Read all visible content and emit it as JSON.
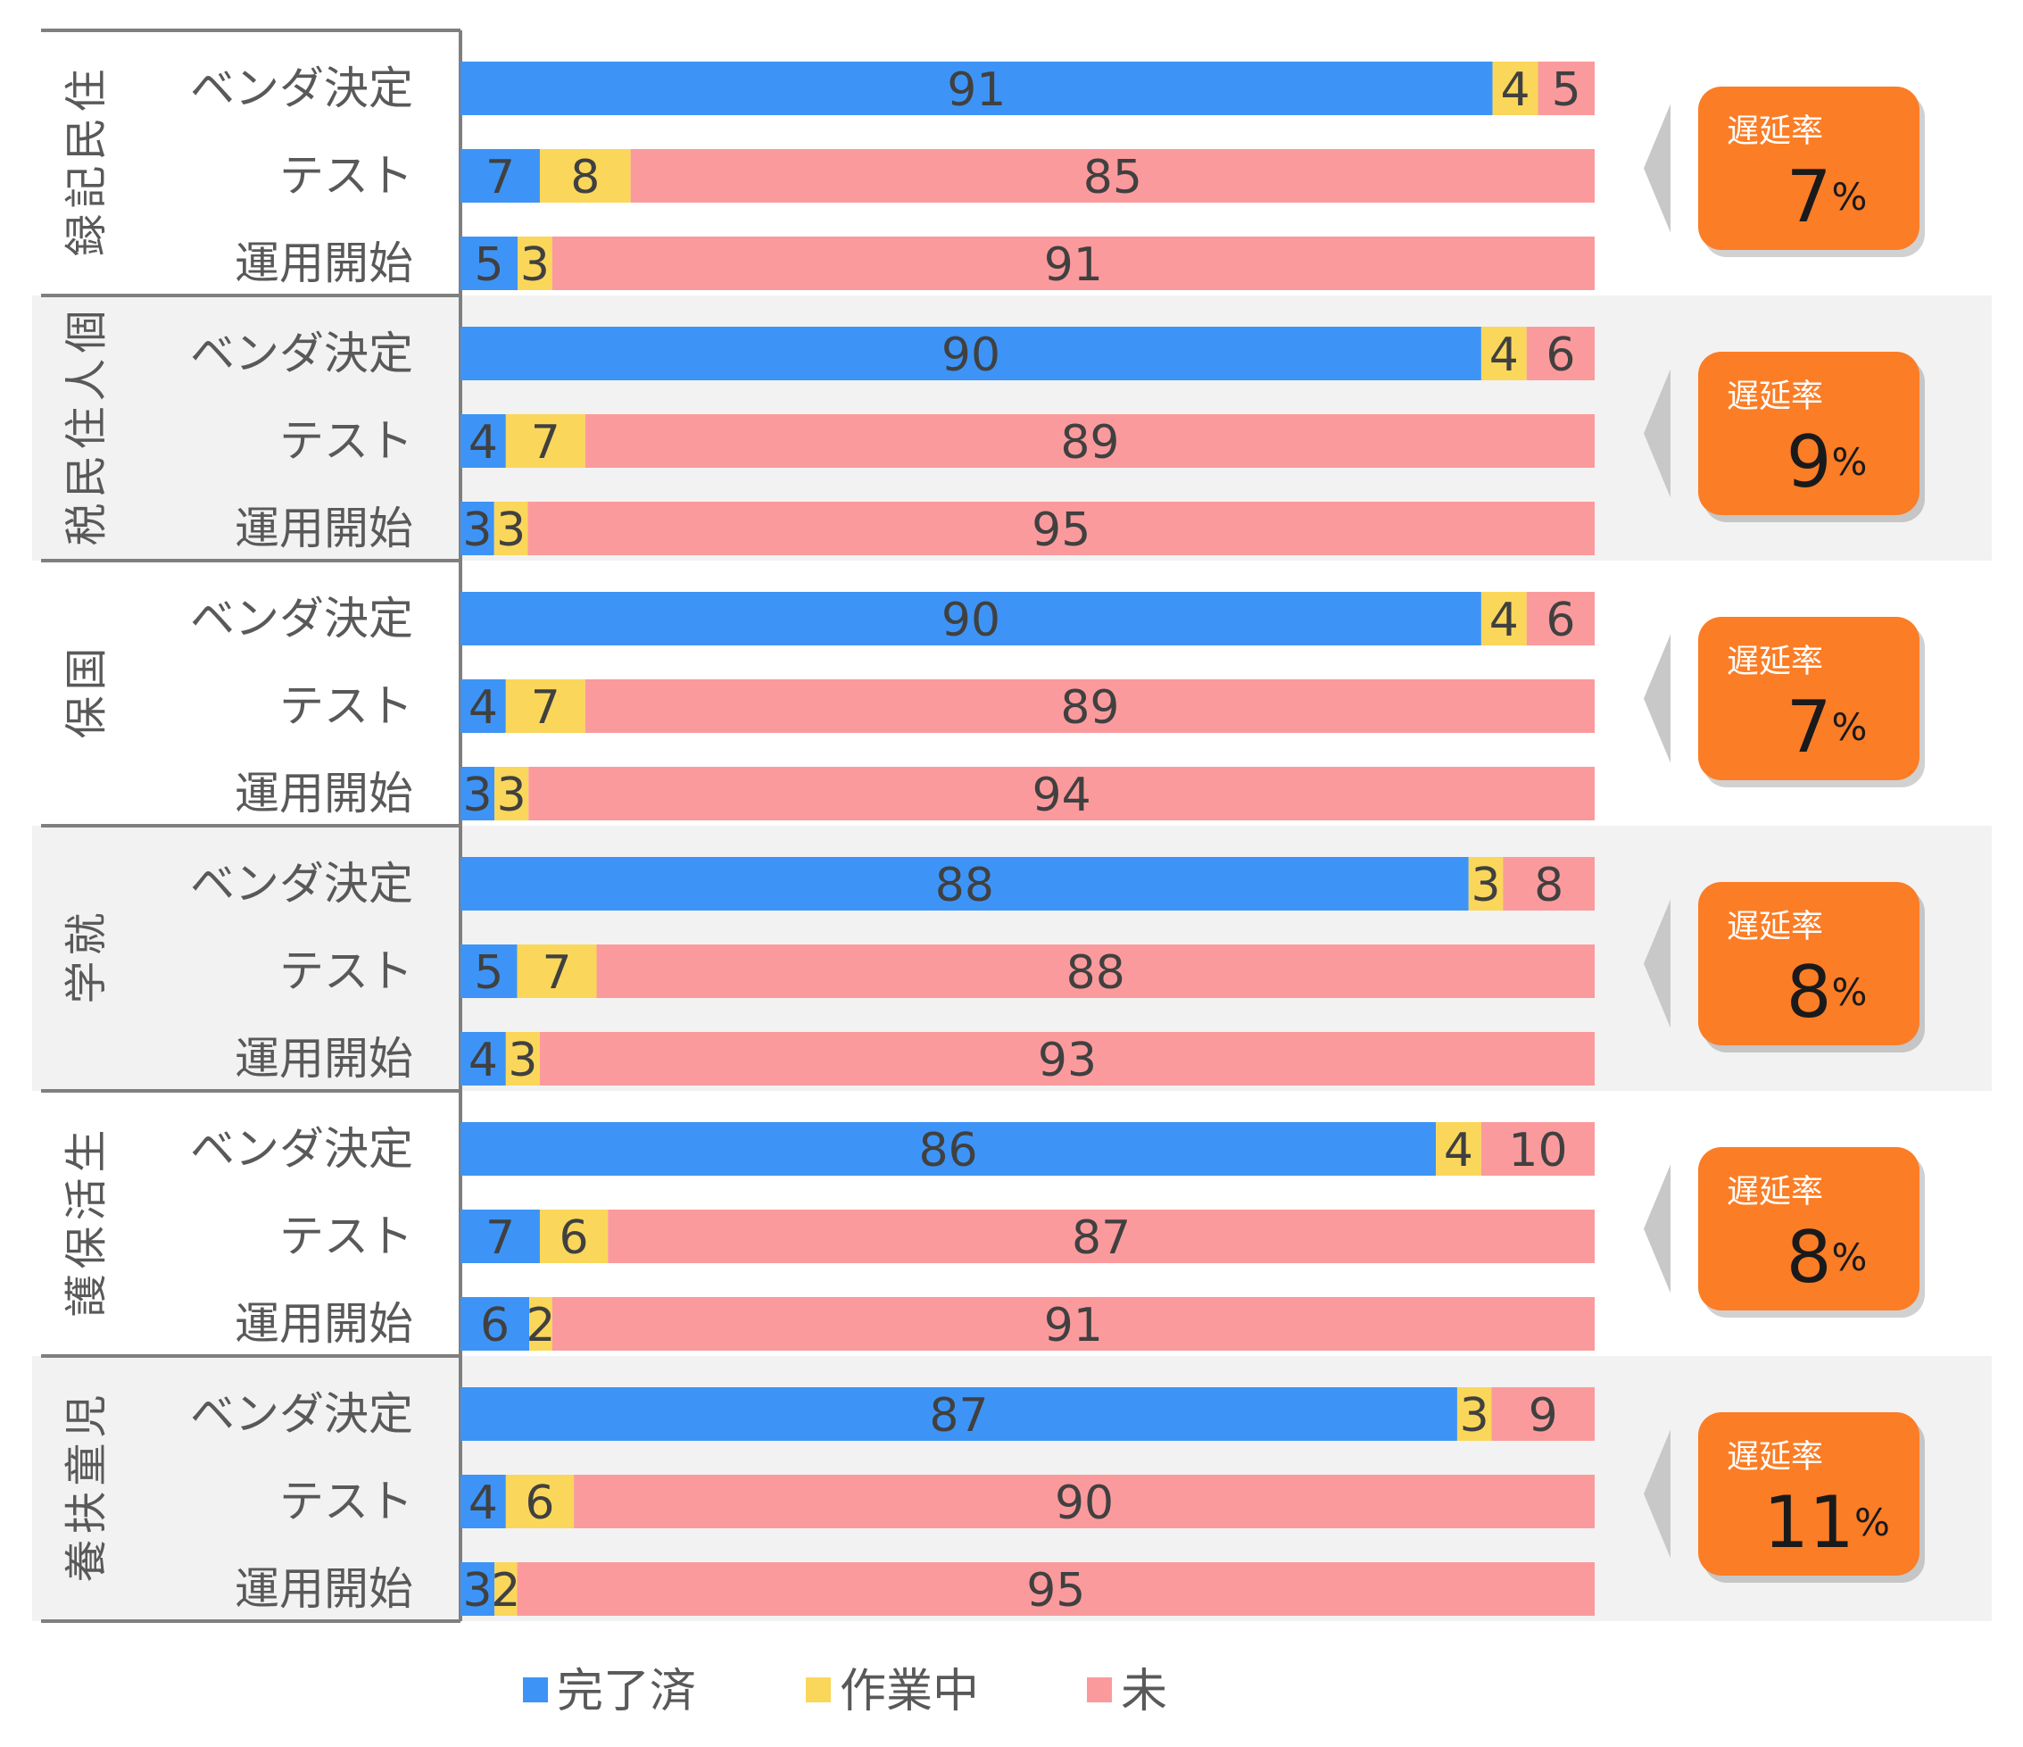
{
  "chart_data": {
    "type": "bar",
    "orientation": "horizontal",
    "stacking": "percent",
    "xlim": [
      0,
      100
    ],
    "series": [
      {
        "key": "done",
        "name": "完了済",
        "color": "#3d94f6"
      },
      {
        "key": "wip",
        "name": "作業中",
        "color": "#fad75a"
      },
      {
        "key": "todo",
        "name": "未",
        "color": "#fb9a9c"
      }
    ],
    "groups": [
      {
        "name": "住民記録",
        "delay_label": "遅延率",
        "delay_value": "7",
        "delay_unit": "%",
        "rows": [
          {
            "label": "ベンダ決定",
            "values": [
              91,
              4,
              5
            ]
          },
          {
            "label": "テスト",
            "values": [
              7,
              8,
              85
            ]
          },
          {
            "label": "運用開始",
            "values": [
              5,
              3,
              91
            ]
          }
        ]
      },
      {
        "name": "個人住民税",
        "delay_label": "遅延率",
        "delay_value": "9",
        "delay_unit": "%",
        "rows": [
          {
            "label": "ベンダ決定",
            "values": [
              90,
              4,
              6
            ]
          },
          {
            "label": "テスト",
            "values": [
              4,
              7,
              89
            ]
          },
          {
            "label": "運用開始",
            "values": [
              3,
              3,
              95
            ]
          }
        ]
      },
      {
        "name": "国保",
        "delay_label": "遅延率",
        "delay_value": "7",
        "delay_unit": "%",
        "rows": [
          {
            "label": "ベンダ決定",
            "values": [
              90,
              4,
              6
            ]
          },
          {
            "label": "テスト",
            "values": [
              4,
              7,
              89
            ]
          },
          {
            "label": "運用開始",
            "values": [
              3,
              3,
              94
            ]
          }
        ]
      },
      {
        "name": "就学",
        "delay_label": "遅延率",
        "delay_value": "8",
        "delay_unit": "%",
        "rows": [
          {
            "label": "ベンダ決定",
            "values": [
              88,
              3,
              8
            ]
          },
          {
            "label": "テスト",
            "values": [
              5,
              7,
              88
            ]
          },
          {
            "label": "運用開始",
            "values": [
              4,
              3,
              93
            ]
          }
        ]
      },
      {
        "name": "生活保護",
        "delay_label": "遅延率",
        "delay_value": "8",
        "delay_unit": "%",
        "rows": [
          {
            "label": "ベンダ決定",
            "values": [
              86,
              4,
              10
            ]
          },
          {
            "label": "テスト",
            "values": [
              7,
              6,
              87
            ]
          },
          {
            "label": "運用開始",
            "values": [
              6,
              2,
              91
            ]
          }
        ]
      },
      {
        "name": "児童扶養",
        "delay_label": "遅延率",
        "delay_value": "11",
        "delay_unit": "%",
        "rows": [
          {
            "label": "ベンダ決定",
            "values": [
              87,
              3,
              9
            ]
          },
          {
            "label": "テスト",
            "values": [
              4,
              6,
              90
            ]
          },
          {
            "label": "運用開始",
            "values": [
              3,
              2,
              95
            ]
          }
        ]
      }
    ],
    "legend_position": "bottom",
    "colors": {
      "badge": "#fb7d26",
      "arrow": "#c8c8c8",
      "band": "#f2f2f2",
      "border": "#7f7f7f",
      "text": "#404040",
      "label_text": "#595959"
    }
  }
}
